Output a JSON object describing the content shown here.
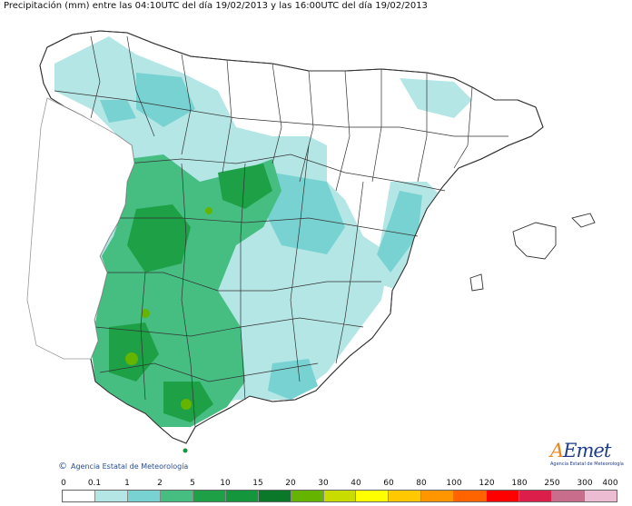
{
  "title": "Precipitación (mm) entre las 04:10UTC del día 19/02/2013 y las 16:00UTC del día 19/02/2013",
  "copyright": "Agencia Estatal de Meteorología",
  "copyright_symbol": "©",
  "logo": {
    "word_a": "A",
    "word_rest": "Emet",
    "subtitle": "Agencia Estatal de Meteorología"
  },
  "legend": {
    "tick_labels": [
      "0",
      "0.1",
      "1",
      "2",
      "5",
      "10",
      "15",
      "20",
      "30",
      "40",
      "60",
      "80",
      "100",
      "120",
      "180",
      "250",
      "300",
      "400"
    ],
    "colors": [
      "#ffffff",
      "#b4e6e6",
      "#78d2d2",
      "#46be82",
      "#1ea046",
      "#14963c",
      "#0a7828",
      "#64b400",
      "#c8dc00",
      "#ffff00",
      "#ffc800",
      "#ff9600",
      "#ff6400",
      "#ff0000",
      "#dc1e4b",
      "#c86e8c",
      "#ebbcd2"
    ]
  }
}
